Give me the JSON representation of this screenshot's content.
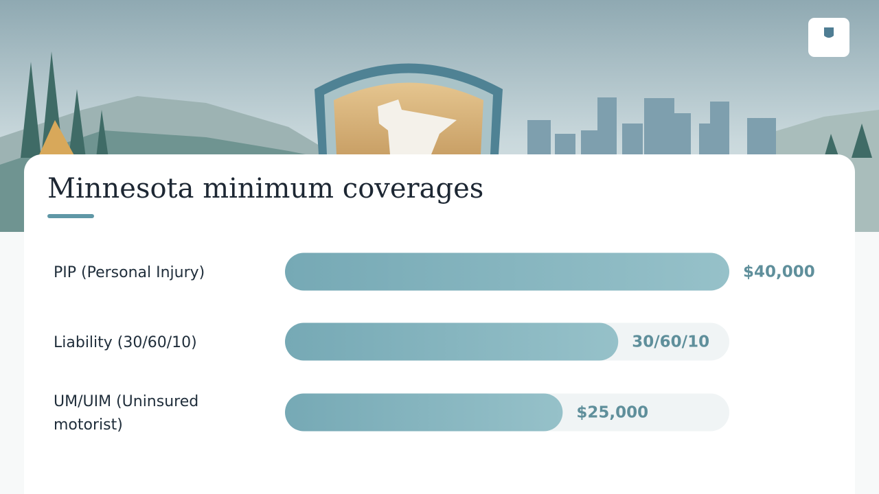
{
  "chart_data": {
    "type": "bar",
    "orientation": "horizontal",
    "title": "Minnesota minimum coverages",
    "categories": [
      [
        "PIP (Personal Injury)"
      ],
      [
        "Liability (30/60/10)"
      ],
      [
        "UM/UIM (Uninsured",
        "motorist)"
      ]
    ],
    "values": [
      40000,
      30000,
      25000
    ],
    "value_labels": [
      "$40,000",
      "30/60/10",
      "$25,000"
    ],
    "xlim": [
      0,
      40000
    ],
    "color": "#7fb0bb"
  }
}
